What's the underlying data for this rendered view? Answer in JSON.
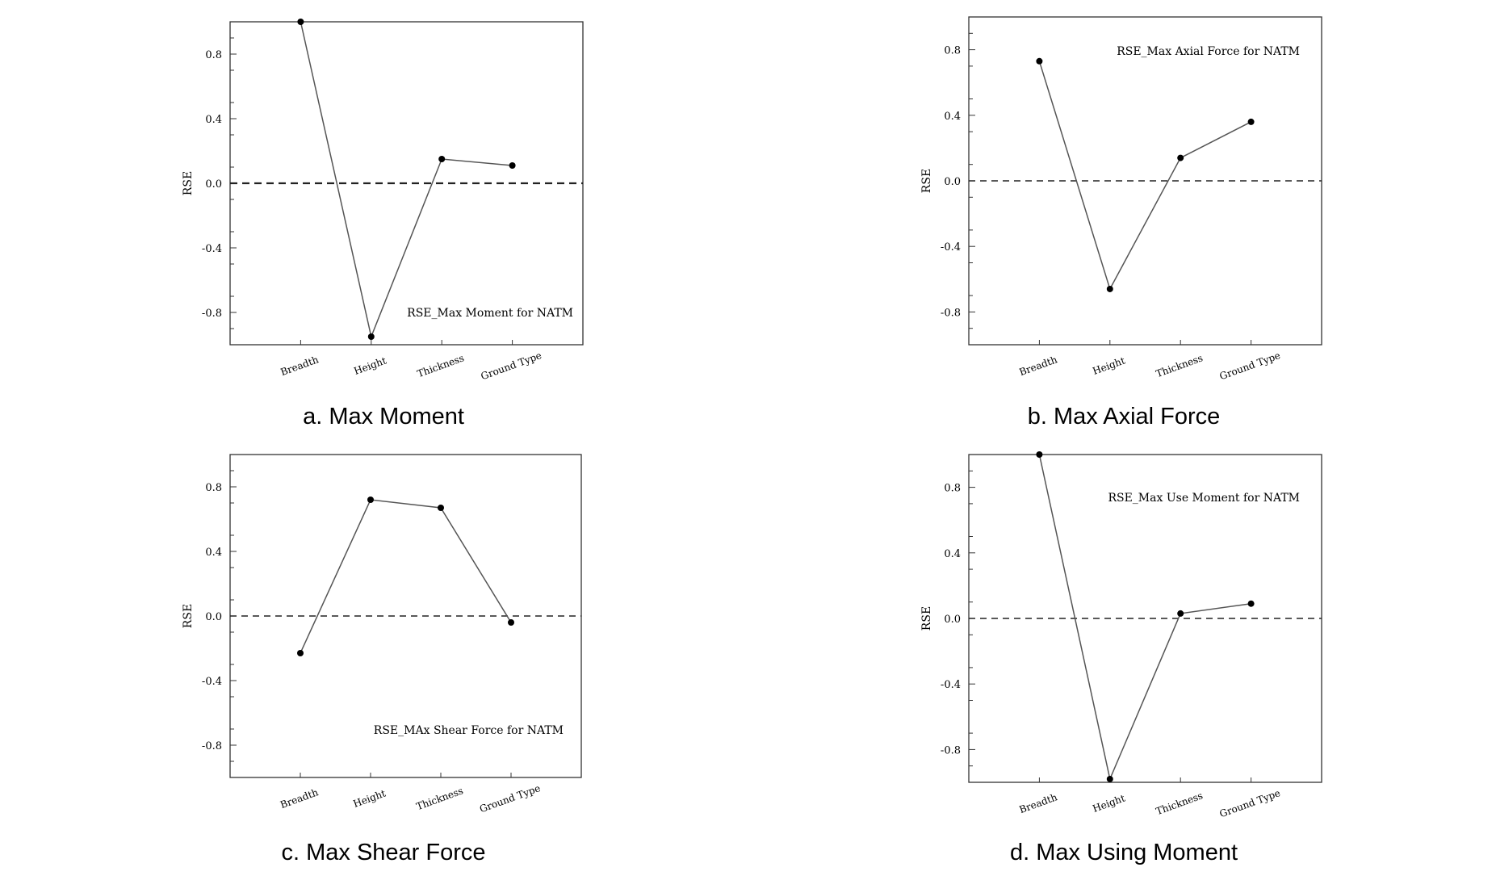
{
  "chart_data": [
    {
      "type": "line",
      "caption": "a.  Max  Moment",
      "title": "RSE_Max Moment for NATM",
      "ylabel": "RSE",
      "xlabel": "",
      "categories": [
        "Breadth",
        "Height",
        "Thickness",
        "Ground Type"
      ],
      "values": [
        1.0,
        -0.95,
        0.15,
        0.11
      ],
      "ylim": [
        -1.0,
        1.0
      ],
      "yticks": [
        "0.8",
        "0.4",
        "0.0",
        "-0.4",
        "-0.8"
      ],
      "reference_line": 0.0,
      "grid": false,
      "title_position": "bottom-right"
    },
    {
      "type": "line",
      "caption": "b.  Max  Axial  Force",
      "title": "RSE_Max Axial Force for NATM",
      "ylabel": "RSE",
      "xlabel": "",
      "categories": [
        "Breadth",
        "Height",
        "Thickness",
        "Ground Type"
      ],
      "values": [
        0.73,
        -0.66,
        0.14,
        0.36
      ],
      "ylim": [
        -1.0,
        1.0
      ],
      "yticks": [
        "0.8",
        "0.4",
        "0.0",
        "-0.4",
        "-0.8"
      ],
      "reference_line": 0.0,
      "grid": false,
      "title_position": "top-right"
    },
    {
      "type": "line",
      "caption": "c.  Max  Shear  Force",
      "title": "RSE_MAx Shear Force for NATM",
      "ylabel": "RSE",
      "xlabel": "",
      "categories": [
        "Breadth",
        "Height",
        "Thickness",
        "Ground Type"
      ],
      "values": [
        -0.23,
        0.72,
        0.67,
        -0.04
      ],
      "ylim": [
        -1.0,
        1.0
      ],
      "yticks": [
        "0.8",
        "0.4",
        "0.0",
        "-0.4",
        "-0.8"
      ],
      "reference_line": 0.0,
      "grid": false,
      "title_position": "bottom-right"
    },
    {
      "type": "line",
      "caption": "d.  Max  Using  Moment",
      "title": "RSE_Max Use Moment for NATM",
      "ylabel": "RSE",
      "xlabel": "",
      "categories": [
        "Breadth",
        "Height",
        "Thickness",
        "Ground Type"
      ],
      "values": [
        1.0,
        -0.98,
        0.03,
        0.09
      ],
      "ylim": [
        -1.0,
        1.0
      ],
      "yticks": [
        "0.8",
        "0.4",
        "0.0",
        "-0.4",
        "-0.8"
      ],
      "reference_line": 0.0,
      "grid": false,
      "title_position": "top-right"
    }
  ]
}
